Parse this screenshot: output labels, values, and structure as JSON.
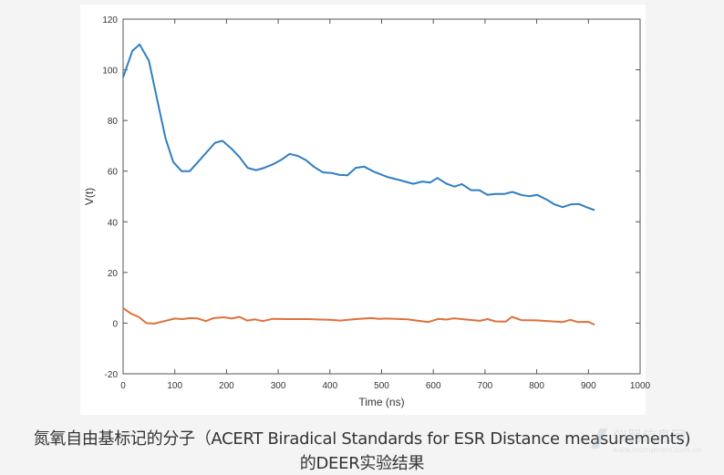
{
  "chart_data": {
    "type": "line",
    "title": "",
    "xlabel": "Time (ns)",
    "ylabel": "V(t)",
    "xlim": [
      0,
      1000
    ],
    "ylim": [
      -20,
      120
    ],
    "xticks": [
      0,
      100,
      200,
      300,
      400,
      500,
      600,
      700,
      800,
      900,
      1000
    ],
    "yticks": [
      -20,
      0,
      20,
      40,
      60,
      80,
      100,
      120
    ],
    "grid": false,
    "series": [
      {
        "color": "#2f7fc1",
        "points": [
          [
            0,
            97
          ],
          [
            18,
            107.5
          ],
          [
            32,
            110
          ],
          [
            50,
            103.6
          ],
          [
            65,
            89
          ],
          [
            82,
            73
          ],
          [
            97,
            63.6
          ],
          [
            113,
            60
          ],
          [
            129,
            60
          ],
          [
            144,
            63.4
          ],
          [
            162,
            67.6
          ],
          [
            178,
            71.2
          ],
          [
            192,
            72
          ],
          [
            209,
            69
          ],
          [
            225,
            65.6
          ],
          [
            241,
            61.3
          ],
          [
            257,
            60.4
          ],
          [
            273,
            61.3
          ],
          [
            291,
            62.8
          ],
          [
            307,
            64.6
          ],
          [
            322,
            66.8
          ],
          [
            338,
            66
          ],
          [
            354,
            64.3
          ],
          [
            370,
            61.6
          ],
          [
            387,
            59.5
          ],
          [
            403,
            59.3
          ],
          [
            419,
            58.5
          ],
          [
            434,
            58.4
          ],
          [
            450,
            61.3
          ],
          [
            466,
            61.8
          ],
          [
            485,
            59.8
          ],
          [
            511,
            57.7
          ],
          [
            529,
            56.8
          ],
          [
            561,
            55
          ],
          [
            579,
            55.9
          ],
          [
            594,
            55.5
          ],
          [
            608,
            57.3
          ],
          [
            626,
            55
          ],
          [
            641,
            53.9
          ],
          [
            655,
            54.9
          ],
          [
            673,
            52.5
          ],
          [
            689,
            52.5
          ],
          [
            705,
            50.6
          ],
          [
            720,
            51
          ],
          [
            738,
            51
          ],
          [
            753,
            51.8
          ],
          [
            770,
            50.6
          ],
          [
            785,
            50.1
          ],
          [
            801,
            50.6
          ],
          [
            820,
            48.7
          ],
          [
            834,
            46.9
          ],
          [
            850,
            45.8
          ],
          [
            867,
            46.9
          ],
          [
            882,
            47
          ],
          [
            896,
            45.8
          ],
          [
            912,
            44.6
          ]
        ]
      },
      {
        "color": "#e0703a",
        "points": [
          [
            0,
            6
          ],
          [
            15,
            3.8
          ],
          [
            30,
            2.5
          ],
          [
            45,
            0
          ],
          [
            60,
            -0.2
          ],
          [
            80,
            0.8
          ],
          [
            100,
            1.8
          ],
          [
            115,
            1.6
          ],
          [
            130,
            2
          ],
          [
            145,
            1.8
          ],
          [
            160,
            0.8
          ],
          [
            175,
            2
          ],
          [
            195,
            2.3
          ],
          [
            210,
            1.8
          ],
          [
            225,
            2.5
          ],
          [
            240,
            1
          ],
          [
            255,
            1.5
          ],
          [
            270,
            0.8
          ],
          [
            290,
            1.7
          ],
          [
            320,
            1.6
          ],
          [
            360,
            1.6
          ],
          [
            380,
            1.4
          ],
          [
            400,
            1.3
          ],
          [
            420,
            1
          ],
          [
            450,
            1.6
          ],
          [
            480,
            2
          ],
          [
            495,
            1.7
          ],
          [
            510,
            1.8
          ],
          [
            550,
            1.5
          ],
          [
            590,
            0.4
          ],
          [
            610,
            1.7
          ],
          [
            625,
            1.4
          ],
          [
            640,
            1.9
          ],
          [
            660,
            1.5
          ],
          [
            690,
            0.9
          ],
          [
            705,
            1.6
          ],
          [
            720,
            0.7
          ],
          [
            740,
            0.6
          ],
          [
            752,
            2.5
          ],
          [
            770,
            1.2
          ],
          [
            800,
            1.1
          ],
          [
            850,
            0.4
          ],
          [
            865,
            1.3
          ],
          [
            880,
            0.4
          ],
          [
            900,
            0.5
          ],
          [
            912,
            -0.6
          ]
        ]
      }
    ]
  },
  "caption": {
    "line1": "氮氧自由基标记的分子（ACERT Biradical Standards for ESR Distance measurements)",
    "line2": "的DEER实验结果"
  },
  "watermark": {
    "text": "仪器信息网",
    "url_text": "www.instrument.com.cn"
  }
}
